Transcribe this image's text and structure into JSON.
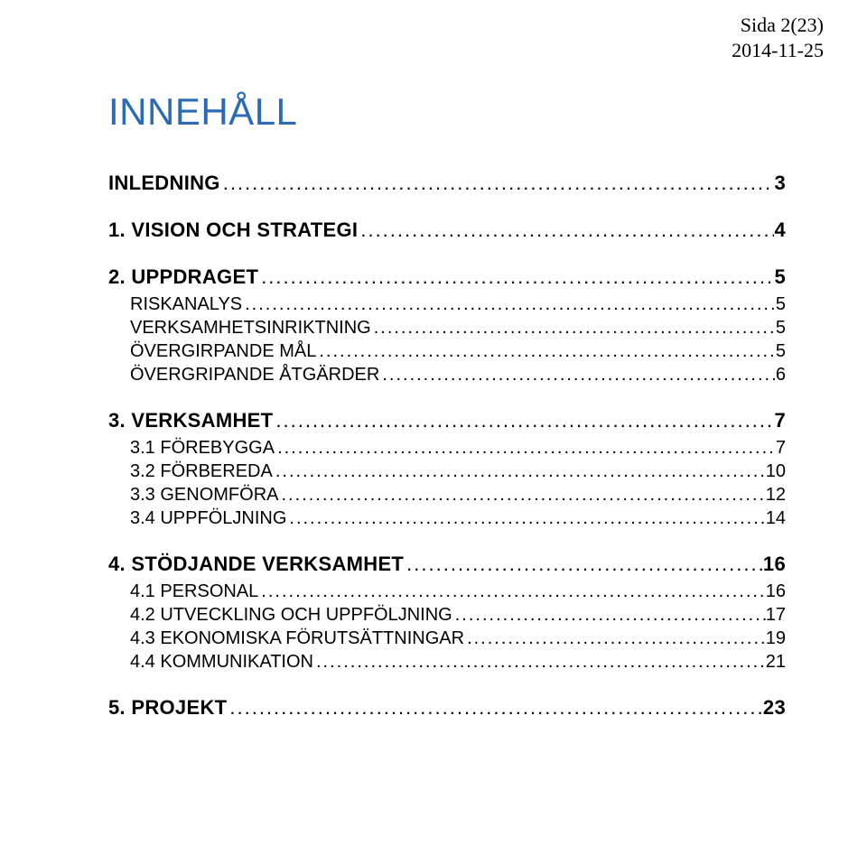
{
  "header": {
    "page_label": "Sida 2(23)",
    "date": "2014-11-25"
  },
  "title": "INNEHÅLL",
  "toc": [
    {
      "level": 1,
      "label": "INLEDNING",
      "page": "3"
    },
    {
      "level": 1,
      "label": "1. VISION OCH STRATEGI",
      "page": "4"
    },
    {
      "level": 1,
      "label": "2. UPPDRAGET",
      "page": "5"
    },
    {
      "level": 2,
      "label": "RISKANALYS",
      "page": "5"
    },
    {
      "level": 2,
      "label": "VERKSAMHETSINRIKTNING",
      "page": "5"
    },
    {
      "level": 2,
      "label": "ÖVERGIRPANDE MÅL",
      "page": "5"
    },
    {
      "level": 2,
      "label": "ÖVERGRIPANDE ÅTGÄRDER",
      "page": "6"
    },
    {
      "level": 1,
      "label": "3. VERKSAMHET",
      "page": "7"
    },
    {
      "level": 2,
      "label": "3.1 FÖREBYGGA",
      "page": "7"
    },
    {
      "level": 2,
      "label": "3.2 FÖRBEREDA",
      "page": "10"
    },
    {
      "level": 2,
      "label": "3.3 GENOMFÖRA",
      "page": "12"
    },
    {
      "level": 2,
      "label": "3.4 UPPFÖLJNING",
      "page": "14"
    },
    {
      "level": 1,
      "label": "4. STÖDJANDE VERKSAMHET",
      "page": "16"
    },
    {
      "level": 2,
      "label": "4.1 PERSONAL",
      "page": "16"
    },
    {
      "level": 2,
      "label": "4.2 UTVECKLING OCH UPPFÖLJNING",
      "page": "17"
    },
    {
      "level": 2,
      "label": "4.3 EKONOMISKA FÖRUTSÄTTNINGAR",
      "page": "19"
    },
    {
      "level": 2,
      "label": "4.4 KOMMUNIKATION",
      "page": "21"
    },
    {
      "level": 1,
      "label": "5. PROJEKT",
      "page": "23"
    }
  ],
  "colors": {
    "title_color": "#2b6bb5",
    "text_color": "#000000",
    "background": "#ffffff"
  },
  "fonts": {
    "header_family": "Times New Roman",
    "title_family": "Arial",
    "toc_family": "Arial",
    "title_size_pt": 32,
    "header_size_pt": 16,
    "level1_size_pt": 16,
    "level2_size_pt": 15
  }
}
